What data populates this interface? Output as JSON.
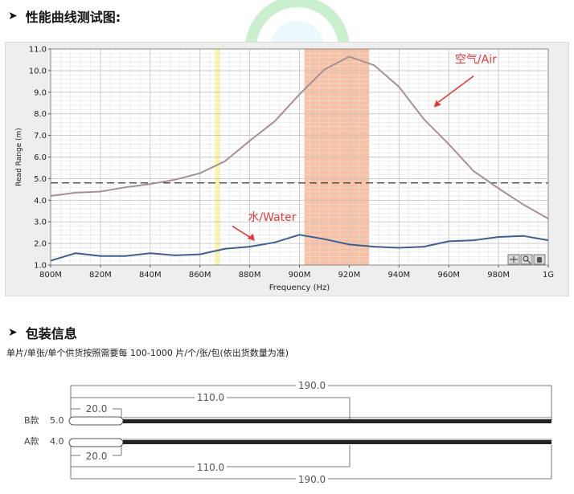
{
  "sections": {
    "performance_title": "性能曲线测试图:",
    "packaging_title": "包装信息",
    "packaging_note": "单片/单张/单个供货按照需要每 100-1000 片/个/张/包(依出货数量为准)"
  },
  "chart_data": {
    "type": "line",
    "xlabel": "Frequency (Hz)",
    "ylabel": "Read Range (m)",
    "xlim": [
      800,
      1000
    ],
    "ylim": [
      1.0,
      11.0
    ],
    "x_ticks": [
      800,
      820,
      840,
      860,
      880,
      900,
      920,
      940,
      960,
      980,
      1000
    ],
    "x_tick_labels": [
      "800M",
      "820M",
      "840M",
      "860M",
      "880M",
      "900M",
      "920M",
      "940M",
      "960M",
      "980M",
      "1G"
    ],
    "y_ticks": [
      1.0,
      2.0,
      3.0,
      4.0,
      5.0,
      6.0,
      7.0,
      8.0,
      9.0,
      10.0,
      11.0
    ],
    "y_tick_labels": [
      "1.0",
      "2.0",
      "3.0",
      "4.0",
      "5.0",
      "6.0",
      "7.0",
      "8.0",
      "9.0",
      "10.0",
      "11.0"
    ],
    "grid": true,
    "bands": [
      {
        "from": 866,
        "to": 868,
        "color": "#fbf6a6"
      },
      {
        "from": 902,
        "to": 928,
        "color": "#f8c1a4"
      }
    ],
    "reference_line": {
      "y": 4.8,
      "style": "dashed",
      "color": "#333333"
    },
    "series": [
      {
        "name": "空气/Air",
        "color": "#a89092",
        "x": [
          800,
          810,
          820,
          830,
          840,
          850,
          860,
          870,
          880,
          890,
          900,
          910,
          920,
          930,
          940,
          950,
          960,
          970,
          980,
          990,
          1000
        ],
        "y": [
          4.2,
          4.35,
          4.4,
          4.6,
          4.75,
          4.95,
          5.25,
          5.8,
          6.75,
          7.65,
          8.9,
          10.05,
          10.65,
          10.25,
          9.25,
          7.75,
          6.6,
          5.35,
          4.55,
          3.8,
          3.15
        ]
      },
      {
        "name": "水/Water",
        "color": "#3f5f8f",
        "x": [
          800,
          810,
          820,
          830,
          840,
          850,
          860,
          870,
          880,
          890,
          900,
          910,
          920,
          930,
          940,
          950,
          960,
          970,
          980,
          990,
          1000
        ],
        "y": [
          1.2,
          1.55,
          1.42,
          1.42,
          1.55,
          1.45,
          1.5,
          1.75,
          1.85,
          2.05,
          2.4,
          2.2,
          1.95,
          1.85,
          1.8,
          1.85,
          2.1,
          2.15,
          2.3,
          2.35,
          2.15
        ]
      }
    ],
    "annotations": [
      {
        "text": "空气/Air",
        "color": "#e23a3a"
      },
      {
        "text": "水/Water",
        "color": "#e23a3a"
      }
    ]
  },
  "diagram": {
    "row_labels": [
      "B款",
      "A款"
    ],
    "row_thickness": [
      "5.0",
      "4.0"
    ],
    "dims": {
      "total": "190.0",
      "mid": "110.0",
      "short": "20.0"
    }
  },
  "colors": {
    "plot_bg": "#ffffff",
    "panel_bg": "#eeeeee",
    "grid_major": "#c6c6c6",
    "grid_minor": "#e3e3e3",
    "annotation": "#e23a3a"
  }
}
